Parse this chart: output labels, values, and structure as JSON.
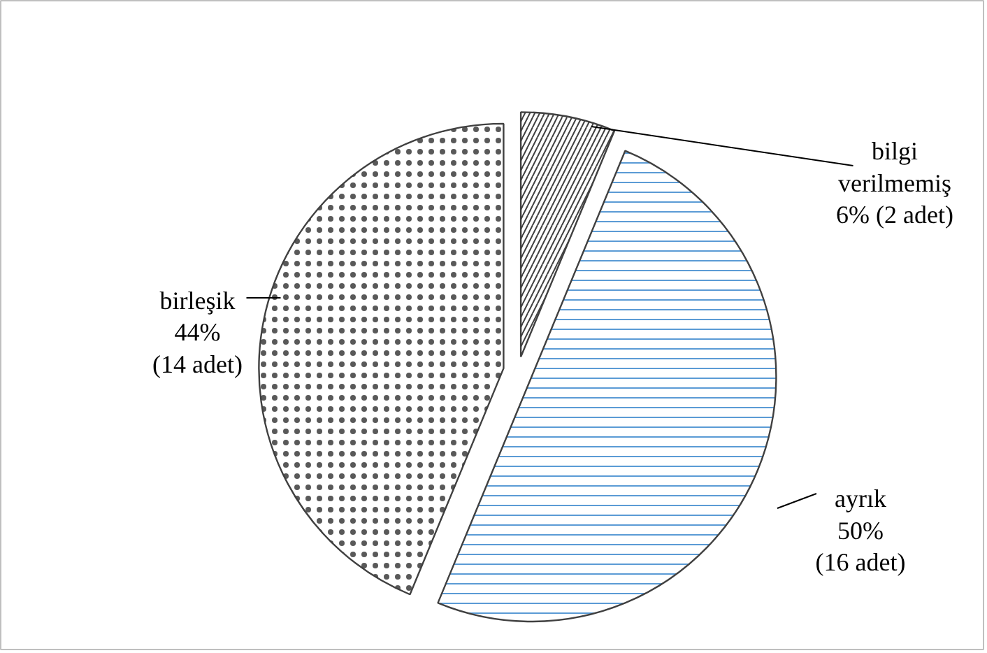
{
  "chart_data": {
    "type": "pie",
    "categories": [
      "bilgi verilmemiş",
      "ayrık",
      "birleşik"
    ],
    "values": [
      2,
      16,
      14
    ],
    "value_labels": [
      "6% (2 adet)",
      "50% (16 adet)",
      "44% (14 adet)"
    ],
    "colors": [
      "#ffffff",
      "#ffffff",
      "#ffffff"
    ]
  }
}
